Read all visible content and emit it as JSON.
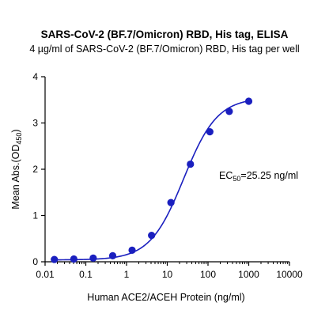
{
  "chart_data": {
    "type": "scatter",
    "title": "SARS-CoV-2 (BF.7/Omicron) RBD, His tag, ELISA",
    "subtitle": "4 µg/ml of SARS-CoV-2 (BF.7/Omicron) RBD, His tag per well",
    "xlabel": "Human ACE2/ACEH Protein (ng/ml)",
    "ylabel": {
      "prefix": "Mean Abs.(OD",
      "subscript": "450",
      "suffix": ")"
    },
    "x_scale": "log",
    "xlim": [
      0.01,
      10000
    ],
    "ylim": [
      0,
      4
    ],
    "x_ticks": [
      0.01,
      0.1,
      1,
      10,
      100,
      1000,
      10000
    ],
    "x_tick_labels": [
      "0.01",
      "0.1",
      "1",
      "10",
      "100",
      "1000",
      "10000"
    ],
    "y_ticks": [
      0,
      1,
      2,
      3,
      4
    ],
    "y_tick_labels": [
      "0",
      "1",
      "2",
      "3",
      "4"
    ],
    "grid": false,
    "color": "#1a1fbf",
    "series": [
      {
        "x": [
          0.0169,
          0.0508,
          0.152,
          0.457,
          1.37,
          4.12,
          12.3,
          37.0,
          111,
          333,
          1000
        ],
        "y": [
          0.05,
          0.06,
          0.08,
          0.13,
          0.25,
          0.57,
          1.28,
          2.11,
          2.81,
          3.25,
          3.47
        ]
      }
    ],
    "fit": {
      "model": "4PL",
      "bottom": 0.04,
      "top": 3.55,
      "ec50": 25.25,
      "hill": 1.05
    },
    "annotation": {
      "prefix": "EC",
      "subscript": "50",
      "suffix": "=25.25 ng/ml"
    }
  }
}
